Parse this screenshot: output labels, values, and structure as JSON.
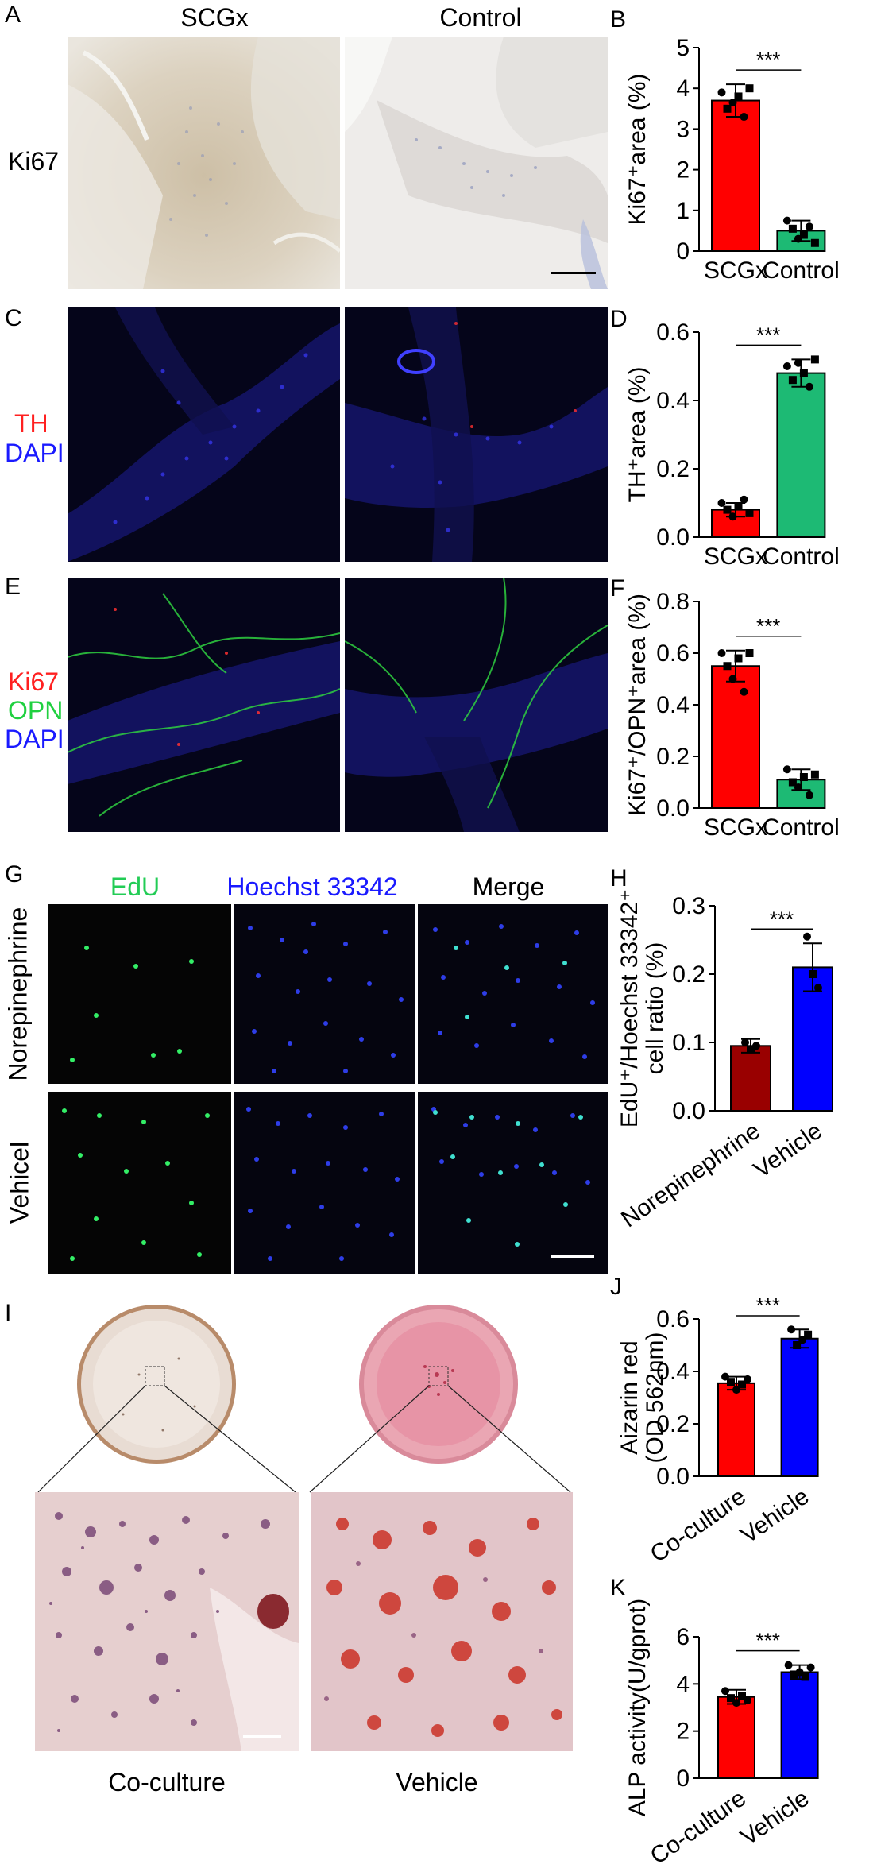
{
  "panel_letters": [
    "A",
    "B",
    "C",
    "D",
    "E",
    "F",
    "G",
    "H",
    "I",
    "J",
    "K"
  ],
  "panel_a": {
    "col1": "SCGx",
    "col2": "Control",
    "row": "Ki67"
  },
  "panel_c": {
    "line1": "TH",
    "line2": "DAPI",
    "color1": "#ff2020",
    "color2": "#1a1aff"
  },
  "panel_e": {
    "line1": "Ki67",
    "line2": "OPN",
    "line3": "DAPI",
    "color1": "#ff2020",
    "color2": "#20d040",
    "color3": "#1a1aff"
  },
  "panel_g": {
    "col1": "EdU",
    "col2": "Hoechst 33342",
    "col3": "Merge",
    "row1": "Norepinephrine",
    "row2": "Vehicel",
    "color_edu": "#22cc55",
    "color_hoechst": "#1a1aff"
  },
  "panel_i": {
    "label1": "Co-culture",
    "label2": "Vehicle"
  },
  "significance": "***",
  "chart_data": [
    {
      "id": "B",
      "type": "bar",
      "categories": [
        "SCGx",
        "Control"
      ],
      "values": [
        3.7,
        0.5
      ],
      "ylim": [
        0,
        5
      ],
      "ticks": [
        "0",
        "1",
        "2",
        "3",
        "4",
        "5"
      ],
      "ylabel": "Ki67⁺area (%)",
      "colors": [
        "#ff0000",
        "#1dba74"
      ],
      "points": [
        [
          3.9,
          3.5,
          3.65,
          3.8,
          3.3,
          4.0
        ],
        [
          0.75,
          0.55,
          0.3,
          0.4,
          0.6,
          0.2
        ]
      ],
      "err": [
        0.4,
        0.25
      ]
    },
    {
      "id": "D",
      "type": "bar",
      "categories": [
        "SCGx",
        "Control"
      ],
      "values": [
        0.08,
        0.48
      ],
      "ylim": [
        0,
        0.6
      ],
      "ticks": [
        "0.0",
        "0.2",
        "0.4",
        "0.6"
      ],
      "ylabel": "TH⁺area (%)",
      "colors": [
        "#ff0000",
        "#1dba74"
      ],
      "points": [
        [
          0.1,
          0.08,
          0.06,
          0.09,
          0.11,
          0.07
        ],
        [
          0.5,
          0.46,
          0.51,
          0.48,
          0.44,
          0.52
        ]
      ],
      "err": [
        0.02,
        0.04
      ]
    },
    {
      "id": "F",
      "type": "bar",
      "categories": [
        "SCGx",
        "Control"
      ],
      "values": [
        0.55,
        0.11
      ],
      "ylim": [
        0,
        0.8
      ],
      "ticks": [
        "0.0",
        "0.2",
        "0.4",
        "0.6",
        "0.8"
      ],
      "ylabel": "Ki67⁺/OPN⁺area (%)",
      "colors": [
        "#ff0000",
        "#1dba74"
      ],
      "points": [
        [
          0.6,
          0.55,
          0.5,
          0.58,
          0.45,
          0.6
        ],
        [
          0.15,
          0.1,
          0.08,
          0.12,
          0.05,
          0.13
        ]
      ],
      "err": [
        0.06,
        0.04
      ]
    },
    {
      "id": "H",
      "type": "bar",
      "categories": [
        "Norepinephrine",
        "Vehicle"
      ],
      "values": [
        0.095,
        0.21
      ],
      "ylim": [
        0,
        0.3
      ],
      "ticks": [
        "0.0",
        "0.1",
        "0.2",
        "0.3"
      ],
      "ylabel": "EdU⁺/Hoechst 33342⁺",
      "ylabel2": "cell ratio (%)",
      "colors": [
        "#990000",
        "#0000ff"
      ],
      "points": [
        [
          0.1,
          0.09,
          0.095
        ],
        [
          0.255,
          0.2,
          0.18
        ]
      ],
      "err": [
        0.01,
        0.035
      ]
    },
    {
      "id": "J",
      "type": "bar",
      "categories": [
        "Co-culture",
        "Vehicle"
      ],
      "values": [
        0.355,
        0.525
      ],
      "ylim": [
        0,
        0.6
      ],
      "ticks": [
        "0.0",
        "0.2",
        "0.4",
        "0.6"
      ],
      "ylabel": "Aizarin red",
      "ylabel2": "(OD 562nm)",
      "colors": [
        "#ff0000",
        "#0000ff"
      ],
      "points": [
        [
          0.38,
          0.36,
          0.33,
          0.35,
          0.37
        ],
        [
          0.56,
          0.5,
          0.52,
          0.54
        ]
      ],
      "err": [
        0.025,
        0.035
      ]
    },
    {
      "id": "K",
      "type": "bar",
      "categories": [
        "Co-culture",
        "Vehicle"
      ],
      "values": [
        3.45,
        4.5
      ],
      "ylim": [
        0,
        6
      ],
      "ticks": [
        "0",
        "2",
        "4",
        "6"
      ],
      "ylabel": "ALP activity(U/gprot)",
      "colors": [
        "#ff0000",
        "#0000ff"
      ],
      "points": [
        [
          3.7,
          3.4,
          3.2,
          3.5,
          3.3
        ],
        [
          4.8,
          4.4,
          4.5,
          4.3,
          4.7
        ]
      ],
      "err": [
        0.3,
        0.3
      ]
    }
  ]
}
